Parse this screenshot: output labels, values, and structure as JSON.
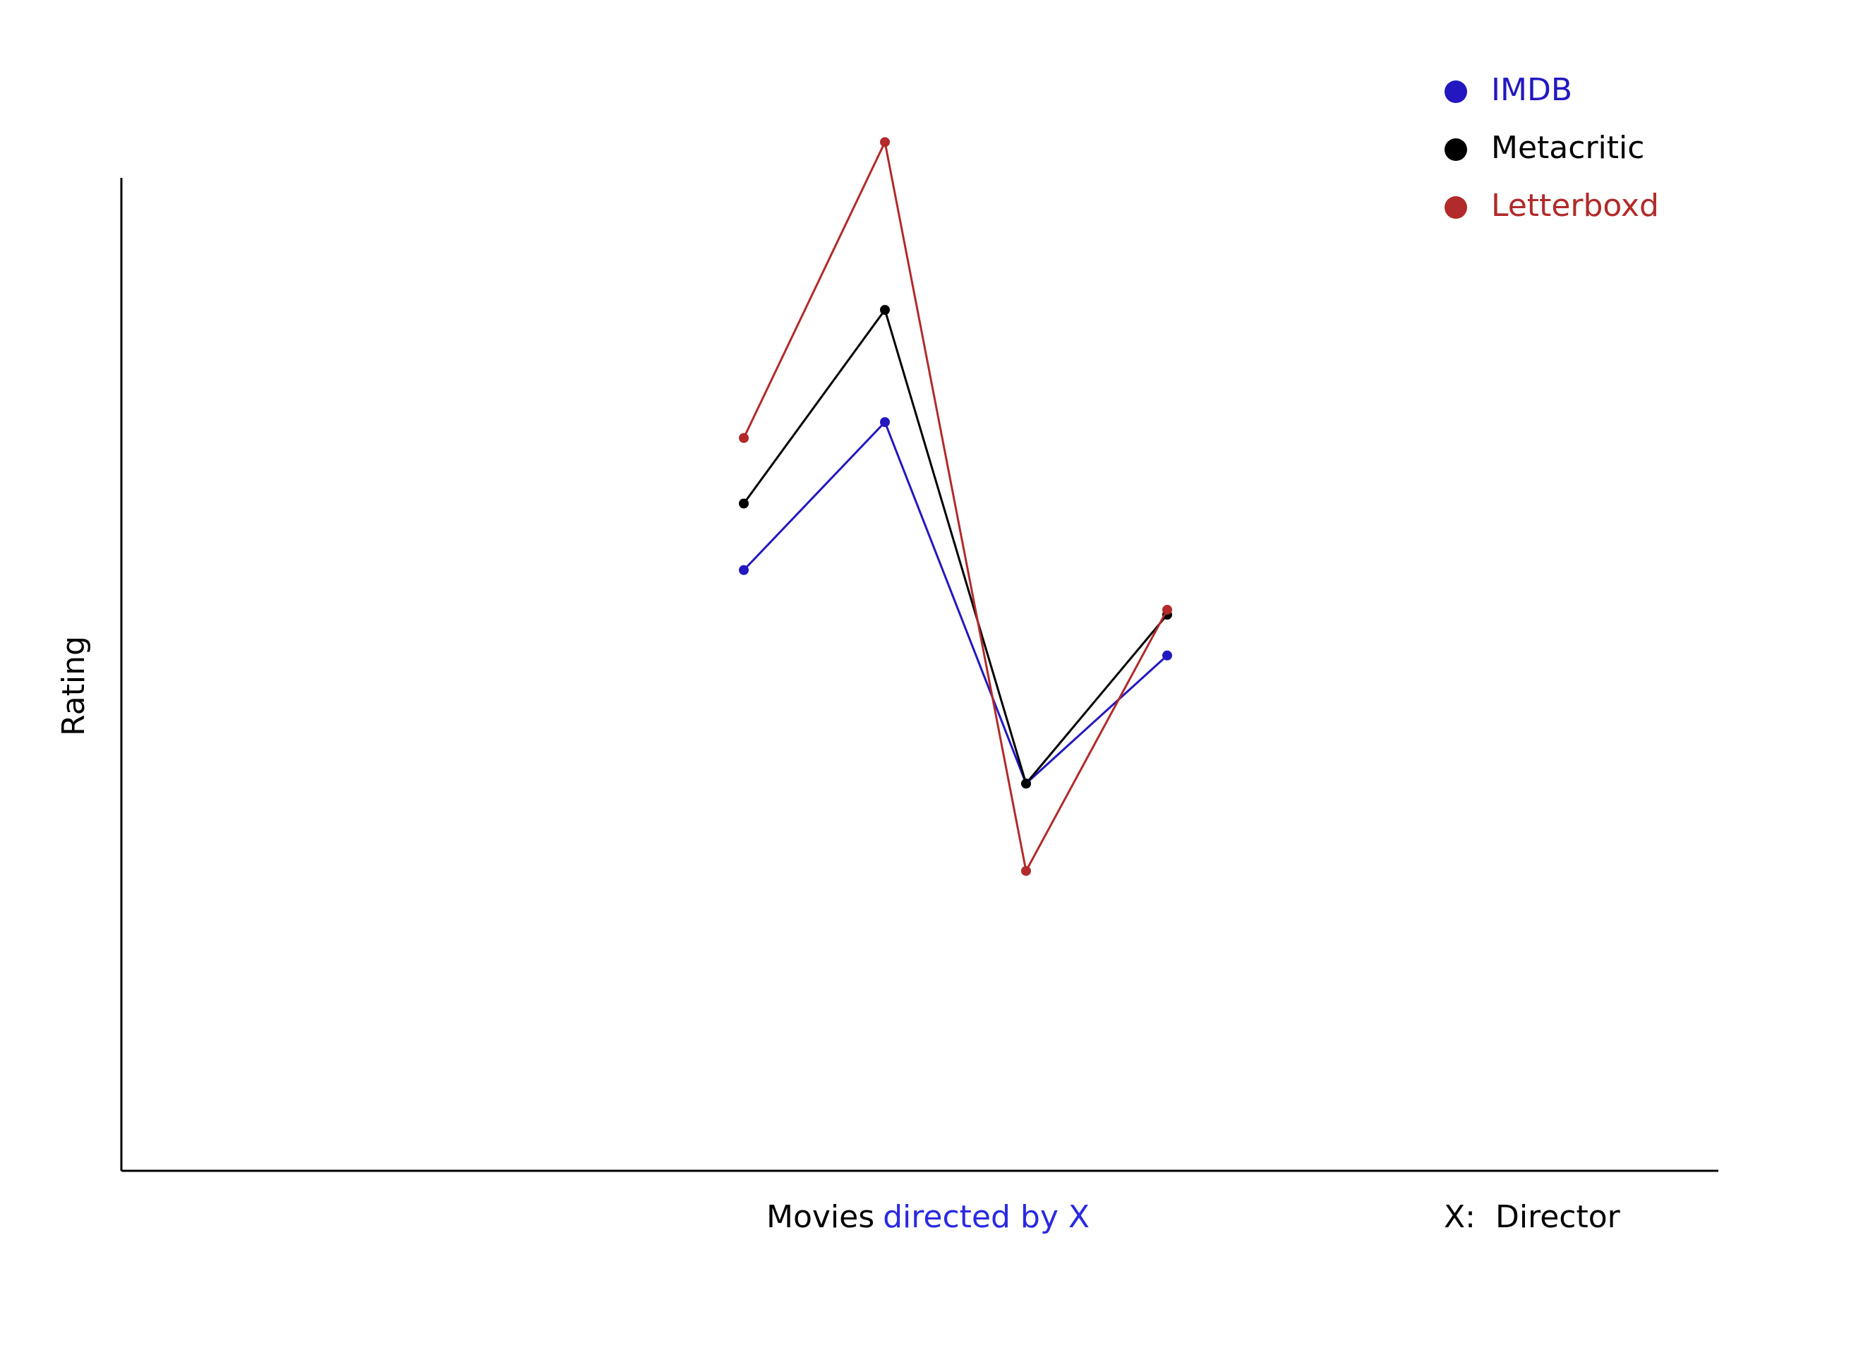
{
  "chart_data": {
    "type": "line",
    "ylabel": "Rating",
    "xlabel": [
      "Movies",
      "directed by X"
    ],
    "annotation": [
      "X:",
      "Director"
    ],
    "categories": [
      null,
      null,
      null,
      null
    ],
    "ylim": [
      0,
      100
    ],
    "series": [
      {
        "name": "IMDB",
        "color": "#2318c0",
        "values": [
          60.5,
          75.4,
          39.0,
          51.9
        ]
      },
      {
        "name": "Metacritic",
        "color": "#000000",
        "values": [
          67.2,
          86.7,
          39.0,
          56.0
        ]
      },
      {
        "name": "Letterboxd",
        "color": "#b22a2a",
        "values": [
          73.8,
          103.6,
          30.2,
          56.5
        ]
      }
    ]
  }
}
